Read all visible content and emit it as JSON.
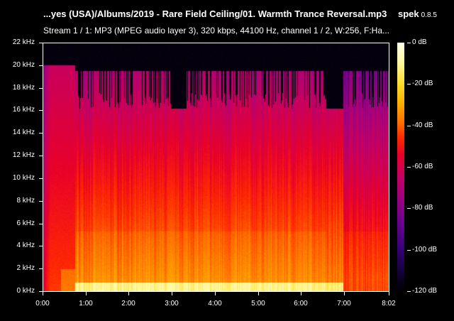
{
  "header": {
    "title": "...yes (USA)/Albums/2019 - Rare Field Ceiling/01. Warmth Trance Reversal.mp3",
    "app_name": "spek",
    "app_version": "0.8.5",
    "subtitle": "Stream 1 / 1: MP3 (MPEG audio layer 3), 320 kbps, 44100 Hz, channel 1 / 2, W:256, F:Ha..."
  },
  "chart_data": {
    "type": "heatmap",
    "subtype": "spectrogram",
    "title": "...yes (USA)/Albums/2019 - Rare Field Ceiling/01. Warmth Trance Reversal.mp3",
    "subtitle": "Stream 1 / 1: MP3 (MPEG audio layer 3), 320 kbps, 44100 Hz, channel 1 / 2, W:256, F:Ha...",
    "xlabel": "Time",
    "ylabel": "Frequency",
    "x_ticks": [
      "0:00",
      "1:00",
      "2:00",
      "3:00",
      "4:00",
      "5:00",
      "6:00",
      "7:00",
      "8:02"
    ],
    "x_range_seconds": [
      0,
      482
    ],
    "y_ticks": [
      "0 kHz",
      "2 kHz",
      "4 kHz",
      "6 kHz",
      "8 kHz",
      "10 kHz",
      "12 kHz",
      "14 kHz",
      "16 kHz",
      "18 kHz",
      "20 kHz",
      "22 kHz"
    ],
    "y_range_khz": [
      0,
      22
    ],
    "colorbar": {
      "label_unit": "dB",
      "ticks": [
        "0 dB",
        "-20 dB",
        "-40 dB",
        "-60 dB",
        "-80 dB",
        "-100 dB",
        "-120 dB"
      ],
      "range_db": [
        -120,
        0
      ],
      "colormap": [
        "#000000",
        "#14003a",
        "#3a007a",
        "#6a0090",
        "#a00080",
        "#c80060",
        "#e8002a",
        "#ff2a00",
        "#ff7000",
        "#ffb000",
        "#ffe030",
        "#fff8a0",
        "#ffffe8"
      ]
    },
    "segments": [
      {
        "start_s": 0,
        "end_s": 45,
        "cutoff_khz": 20.0,
        "level": "quiet intro, purple/magenta, red below 4 kHz"
      },
      {
        "start_s": 45,
        "end_s": 178,
        "cutoff_khz": 19.5,
        "level": "loud, red body, orange/yellow below 5 kHz"
      },
      {
        "start_s": 178,
        "end_s": 200,
        "cutoff_khz": 16.2,
        "level": "loud, lower cutoff"
      },
      {
        "start_s": 200,
        "end_s": 237,
        "cutoff_khz": 19.5,
        "level": "loud"
      },
      {
        "start_s": 237,
        "end_s": 395,
        "cutoff_khz": 19.5,
        "level": "loud, sporadic top content"
      },
      {
        "start_s": 395,
        "end_s": 418,
        "cutoff_khz": 16.2,
        "level": "transition, orange/yellow below 5 kHz"
      },
      {
        "start_s": 418,
        "end_s": 482,
        "cutoff_khz": 19.5,
        "level": "quieter outro, purple upper, red lows"
      }
    ]
  }
}
